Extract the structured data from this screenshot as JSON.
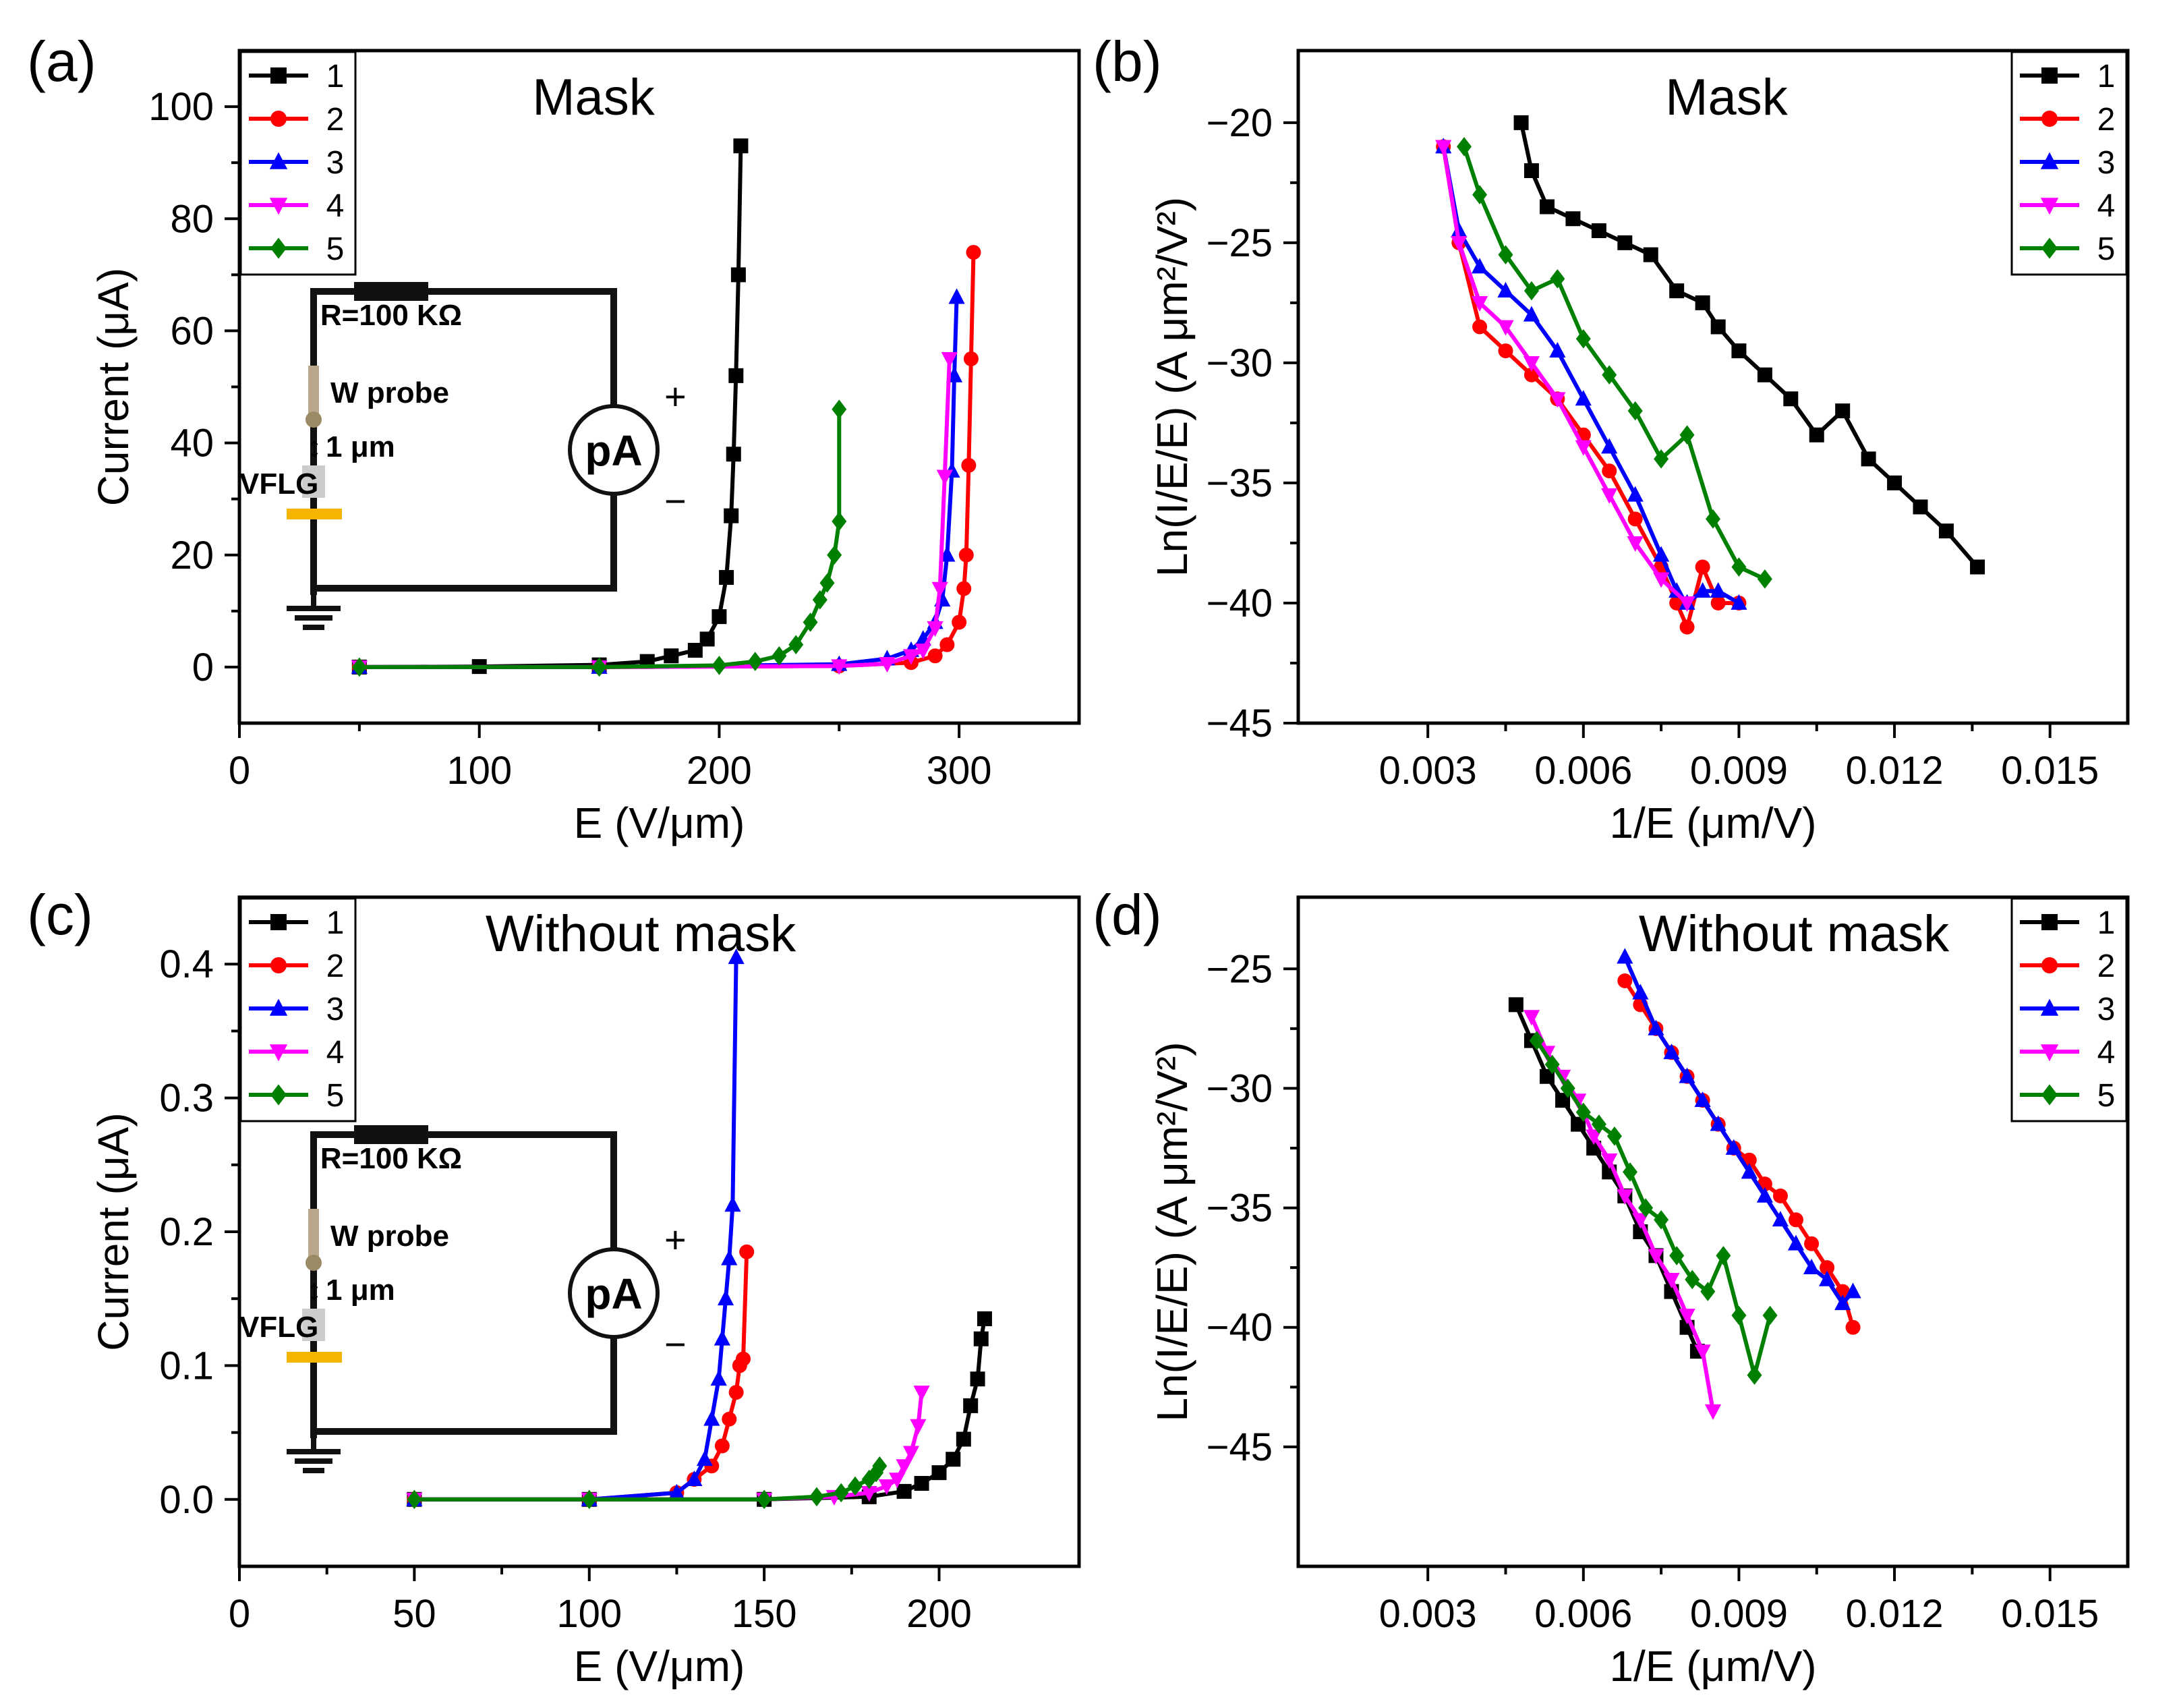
{
  "figure": {
    "colors": {
      "1": "#000000",
      "2": "#ff0000",
      "3": "#0000ff",
      "4": "#ff00ff",
      "5": "#008000"
    },
    "markers": {
      "1": "square",
      "2": "circle",
      "3": "triangle-up",
      "4": "triangle-down",
      "5": "diamond"
    },
    "circuit": {
      "resistor": "R=100 KΩ",
      "probe": "W probe",
      "gap": "1 μm",
      "sample": "VFLG",
      "meter": "pA",
      "plus": "+",
      "minus": "−",
      "resistor_icon": "resistor-icon",
      "ground_icon": "ground-icon",
      "meter_icon": "picoammeter-icon"
    }
  },
  "chart_data": [
    {
      "panel": "(a)",
      "type": "line",
      "title": "Mask",
      "xlabel": "E (V/μm)",
      "ylabel": "Current (μA)",
      "xlim": [
        0,
        350
      ],
      "ylim": [
        -10,
        110
      ],
      "xticks": [
        0,
        100,
        200,
        300
      ],
      "xtick_labels": [
        "0",
        "100",
        "200",
        "300"
      ],
      "yticks": [
        0,
        20,
        40,
        60,
        80,
        100
      ],
      "ytick_labels": [
        "0",
        "20",
        "40",
        "60",
        "80",
        "100"
      ],
      "legend": [
        "1",
        "2",
        "3",
        "4",
        "5"
      ],
      "legend_position": "top-left",
      "series": [
        {
          "name": "1",
          "x": [
            50,
            100,
            150,
            170,
            180,
            190,
            195,
            200,
            203,
            205,
            206,
            207,
            208,
            209
          ],
          "y": [
            0,
            0.1,
            0.4,
            1,
            2,
            3,
            5,
            9,
            16,
            27,
            38,
            52,
            70,
            93
          ]
        },
        {
          "name": "2",
          "x": [
            50,
            150,
            250,
            280,
            290,
            295,
            300,
            302,
            303,
            304,
            305,
            306
          ],
          "y": [
            0,
            0,
            0.2,
            0.8,
            2,
            4,
            8,
            14,
            20,
            36,
            55,
            74
          ]
        },
        {
          "name": "3",
          "x": [
            50,
            150,
            250,
            270,
            280,
            285,
            290,
            293,
            295,
            297,
            298,
            299
          ],
          "y": [
            0,
            0,
            0.5,
            1.5,
            3,
            5,
            8,
            12,
            20,
            35,
            52,
            66
          ]
        },
        {
          "name": "4",
          "x": [
            50,
            150,
            250,
            270,
            280,
            285,
            290,
            292,
            294,
            296
          ],
          "y": [
            0,
            0,
            0.2,
            0.6,
            2,
            3,
            7,
            14,
            34,
            55
          ]
        },
        {
          "name": "5",
          "x": [
            50,
            150,
            200,
            215,
            225,
            232,
            238,
            242,
            245,
            248,
            250,
            250
          ],
          "y": [
            0,
            0,
            0.3,
            1,
            2,
            4,
            8,
            12,
            15,
            20,
            26,
            46
          ]
        }
      ]
    },
    {
      "panel": "(b)",
      "type": "line",
      "title": "Mask",
      "xlabel": "1/E (μm/V)",
      "ylabel": "Ln(I/E/E) (A μm²/V²)",
      "xlim": [
        0.0005,
        0.0165
      ],
      "ylim": [
        -45,
        -17
      ],
      "xticks": [
        0.003,
        0.006,
        0.009,
        0.012,
        0.015
      ],
      "xtick_labels": [
        "0.003",
        "0.006",
        "0.009",
        "0.012",
        "0.015"
      ],
      "yticks": [
        -45,
        -40,
        -35,
        -30,
        -25,
        -20
      ],
      "ytick_labels": [
        "−45",
        "−40",
        "−35",
        "−30",
        "−25",
        "−20"
      ],
      "legend": [
        "1",
        "2",
        "3",
        "4",
        "5"
      ],
      "legend_position": "top-right",
      "series": [
        {
          "name": "1",
          "x": [
            0.0048,
            0.005,
            0.0053,
            0.0058,
            0.0063,
            0.0068,
            0.0073,
            0.0078,
            0.0083,
            0.0086,
            0.009,
            0.0095,
            0.01,
            0.0105,
            0.011,
            0.0115,
            0.012,
            0.0125,
            0.013,
            0.0136
          ],
          "y": [
            -20,
            -22,
            -23.5,
            -24,
            -24.5,
            -25,
            -25.5,
            -27,
            -27.5,
            -28.5,
            -29.5,
            -30.5,
            -31.5,
            -33,
            -32,
            -34,
            -35,
            -36,
            -37,
            -38.5
          ]
        },
        {
          "name": "2",
          "x": [
            0.0033,
            0.0036,
            0.004,
            0.0045,
            0.005,
            0.0055,
            0.006,
            0.0065,
            0.007,
            0.0075,
            0.0078,
            0.008,
            0.0083,
            0.0086,
            0.009
          ],
          "y": [
            -21,
            -25,
            -28.5,
            -29.5,
            -30.5,
            -31.5,
            -33,
            -34.5,
            -36.5,
            -38.5,
            -40,
            -41,
            -38.5,
            -40,
            -40
          ]
        },
        {
          "name": "3",
          "x": [
            0.0033,
            0.0036,
            0.004,
            0.0045,
            0.005,
            0.0055,
            0.006,
            0.0065,
            0.007,
            0.0075,
            0.0078,
            0.008,
            0.0083,
            0.0086,
            0.009
          ],
          "y": [
            -21,
            -24.5,
            -26,
            -27,
            -28,
            -29.5,
            -31.5,
            -33.5,
            -35.5,
            -38,
            -39.5,
            -40,
            -39.5,
            -39.5,
            -40
          ]
        },
        {
          "name": "4",
          "x": [
            0.0033,
            0.0036,
            0.004,
            0.0045,
            0.005,
            0.0055,
            0.006,
            0.0065,
            0.007,
            0.0075,
            0.008
          ],
          "y": [
            -21,
            -25,
            -27.5,
            -28.5,
            -30,
            -31.5,
            -33.5,
            -35.5,
            -37.5,
            -39,
            -40
          ]
        },
        {
          "name": "5",
          "x": [
            0.0037,
            0.004,
            0.0045,
            0.005,
            0.0055,
            0.006,
            0.0065,
            0.007,
            0.0075,
            0.008,
            0.0085,
            0.009,
            0.0095
          ],
          "y": [
            -21,
            -23,
            -25.5,
            -27,
            -26.5,
            -29,
            -30.5,
            -32,
            -34,
            -33,
            -36.5,
            -38.5,
            -39
          ]
        }
      ]
    },
    {
      "panel": "(c)",
      "type": "line",
      "title": "Without mask",
      "xlabel": "E (V/μm)",
      "ylabel": "Current (μA)",
      "xlim": [
        0,
        240
      ],
      "ylim": [
        -0.05,
        0.45
      ],
      "xticks": [
        0,
        50,
        100,
        150,
        200
      ],
      "xtick_labels": [
        "0",
        "50",
        "100",
        "150",
        "200"
      ],
      "yticks": [
        0,
        0.1,
        0.2,
        0.3,
        0.4
      ],
      "ytick_labels": [
        "0.0",
        "0.1",
        "0.2",
        "0.3",
        "0.4"
      ],
      "legend": [
        "1",
        "2",
        "3",
        "4",
        "5"
      ],
      "legend_position": "top-left",
      "series": [
        {
          "name": "1",
          "x": [
            50,
            100,
            150,
            180,
            190,
            195,
            200,
            204,
            207,
            209,
            211,
            212,
            213
          ],
          "y": [
            0,
            0,
            0,
            0.002,
            0.006,
            0.012,
            0.02,
            0.03,
            0.045,
            0.07,
            0.09,
            0.12,
            0.135
          ]
        },
        {
          "name": "2",
          "x": [
            50,
            100,
            125,
            130,
            135,
            138,
            140,
            142,
            143,
            144,
            145
          ],
          "y": [
            0,
            0,
            0.005,
            0.015,
            0.025,
            0.04,
            0.06,
            0.08,
            0.1,
            0.105,
            0.185
          ]
        },
        {
          "name": "3",
          "x": [
            50,
            100,
            125,
            130,
            133,
            135,
            137,
            138,
            139,
            140,
            141,
            142
          ],
          "y": [
            0,
            0,
            0.005,
            0.015,
            0.03,
            0.06,
            0.09,
            0.12,
            0.15,
            0.18,
            0.22,
            0.405
          ]
        },
        {
          "name": "4",
          "x": [
            50,
            100,
            150,
            170,
            180,
            185,
            188,
            190,
            192,
            194,
            195
          ],
          "y": [
            0,
            0,
            0,
            0.002,
            0.005,
            0.01,
            0.015,
            0.025,
            0.035,
            0.055,
            0.08
          ]
        },
        {
          "name": "5",
          "x": [
            50,
            100,
            150,
            165,
            172,
            176,
            180,
            182,
            183
          ],
          "y": [
            0,
            0,
            0,
            0.002,
            0.005,
            0.01,
            0.015,
            0.02,
            0.025
          ]
        }
      ]
    },
    {
      "panel": "(d)",
      "type": "line",
      "title": "Without mask",
      "xlabel": "1/E (μm/V)",
      "ylabel": "Ln(I/E/E) (A μm²/V²)",
      "xlim": [
        0.0005,
        0.0165
      ],
      "ylim": [
        -50,
        -22
      ],
      "xticks": [
        0.003,
        0.006,
        0.009,
        0.012,
        0.015
      ],
      "xtick_labels": [
        "0.003",
        "0.006",
        "0.009",
        "0.012",
        "0.015"
      ],
      "yticks": [
        -45,
        -40,
        -35,
        -30,
        -25
      ],
      "ytick_labels": [
        "−45",
        "−40",
        "−35",
        "−30",
        "−25"
      ],
      "legend": [
        "1",
        "2",
        "3",
        "4",
        "5"
      ],
      "legend_position": "top-right",
      "series": [
        {
          "name": "1",
          "x": [
            0.0047,
            0.005,
            0.0053,
            0.0056,
            0.0059,
            0.0062,
            0.0065,
            0.0068,
            0.0071,
            0.0074,
            0.0077,
            0.008,
            0.0082
          ],
          "y": [
            -26.5,
            -28,
            -29.5,
            -30.5,
            -31.5,
            -32.5,
            -33.5,
            -34.5,
            -36,
            -37,
            -38.5,
            -40,
            -41
          ]
        },
        {
          "name": "2",
          "x": [
            0.0068,
            0.0071,
            0.0074,
            0.0077,
            0.008,
            0.0083,
            0.0086,
            0.0089,
            0.0092,
            0.0095,
            0.0098,
            0.0101,
            0.0104,
            0.0107,
            0.011,
            0.0112
          ],
          "y": [
            -25.5,
            -26.5,
            -27.5,
            -28.5,
            -29.5,
            -30.5,
            -31.5,
            -32.5,
            -33,
            -34,
            -34.5,
            -35.5,
            -36.5,
            -37.5,
            -38.5,
            -40
          ]
        },
        {
          "name": "3",
          "x": [
            0.0068,
            0.0071,
            0.0074,
            0.0077,
            0.008,
            0.0083,
            0.0086,
            0.0089,
            0.0092,
            0.0095,
            0.0098,
            0.0101,
            0.0104,
            0.0107,
            0.011,
            0.0112
          ],
          "y": [
            -24.5,
            -26,
            -27.5,
            -28.5,
            -29.5,
            -30.5,
            -31.5,
            -32.5,
            -33.5,
            -34.5,
            -35.5,
            -36.5,
            -37.5,
            -38,
            -39,
            -38.5
          ]
        },
        {
          "name": "4",
          "x": [
            0.005,
            0.0053,
            0.0056,
            0.0059,
            0.0062,
            0.0065,
            0.0068,
            0.0071,
            0.0074,
            0.0077,
            0.008,
            0.0083,
            0.0085
          ],
          "y": [
            -27,
            -28.5,
            -29.5,
            -30.5,
            -32,
            -33,
            -34.5,
            -35.5,
            -37,
            -38,
            -39.5,
            -41,
            -43.5
          ]
        },
        {
          "name": "5",
          "x": [
            0.0051,
            0.0054,
            0.0057,
            0.006,
            0.0063,
            0.0066,
            0.0069,
            0.0072,
            0.0075,
            0.0078,
            0.0081,
            0.0084,
            0.0087,
            0.009,
            0.0093,
            0.0096
          ],
          "y": [
            -28,
            -29,
            -30,
            -31,
            -31.5,
            -32,
            -33.5,
            -35,
            -35.5,
            -37,
            -38,
            -38.5,
            -37,
            -39.5,
            -42,
            -39.5
          ]
        }
      ]
    }
  ]
}
